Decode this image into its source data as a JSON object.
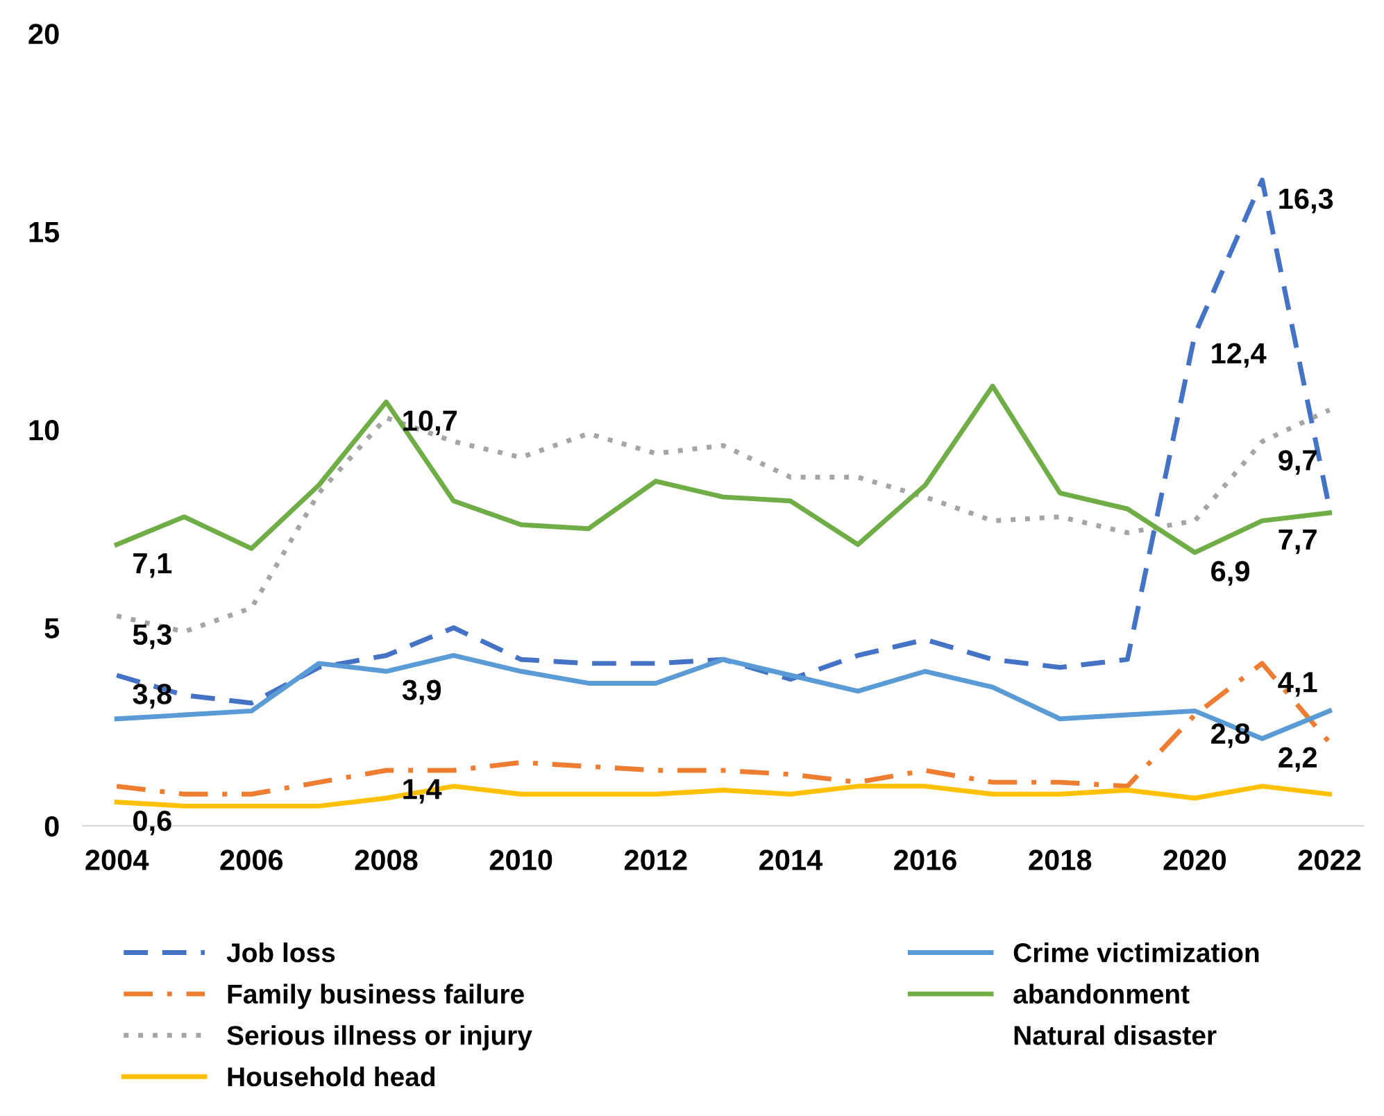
{
  "chart_data": {
    "type": "line",
    "x": [
      2004,
      2005,
      2006,
      2007,
      2008,
      2009,
      2010,
      2011,
      2012,
      2013,
      2014,
      2015,
      2016,
      2017,
      2018,
      2019,
      2020,
      2021,
      2022
    ],
    "xlim": [
      2003.5,
      2022.5
    ],
    "xticks": [
      2004,
      2006,
      2008,
      2010,
      2012,
      2014,
      2016,
      2018,
      2020,
      2022
    ],
    "ylim": [
      0,
      20
    ],
    "yticks": [
      0,
      5,
      10,
      15,
      20
    ],
    "grid": false,
    "legend": "bottom",
    "series": [
      {
        "name": "Job loss",
        "color": "#4472c4",
        "line_style": "dashed",
        "values": [
          3.8,
          3.3,
          3.1,
          4.0,
          4.3,
          5.0,
          4.2,
          4.1,
          4.1,
          4.2,
          3.7,
          4.3,
          4.7,
          4.2,
          4.0,
          4.2,
          12.4,
          16.3,
          8.0
        ],
        "value_labels": [
          "3,8",
          null,
          null,
          null,
          null,
          null,
          null,
          null,
          null,
          null,
          null,
          null,
          null,
          null,
          null,
          null,
          "12,4",
          "16,3",
          null
        ]
      },
      {
        "name": "Family business failure",
        "color": "#ed7d31",
        "line_style": "dashdot",
        "values": [
          1.0,
          0.8,
          0.8,
          1.1,
          1.4,
          1.4,
          1.6,
          1.5,
          1.4,
          1.4,
          1.3,
          1.1,
          1.4,
          1.1,
          1.1,
          1.0,
          2.8,
          4.1,
          2.1
        ],
        "value_labels": [
          null,
          null,
          null,
          null,
          "1,4",
          null,
          null,
          null,
          null,
          null,
          null,
          null,
          null,
          null,
          null,
          null,
          "2,8",
          "4,1",
          null
        ]
      },
      {
        "name": "Serious illness or injury",
        "color": "#a5a5a5",
        "line_style": "dotted",
        "values": [
          5.3,
          4.9,
          5.5,
          8.4,
          10.3,
          9.7,
          9.3,
          9.9,
          9.4,
          9.6,
          8.8,
          8.8,
          8.3,
          7.7,
          7.8,
          7.4,
          7.7,
          9.7,
          10.5
        ],
        "value_labels": [
          "5,3",
          null,
          null,
          null,
          null,
          null,
          null,
          null,
          null,
          null,
          null,
          null,
          null,
          null,
          null,
          null,
          null,
          "9,7",
          null
        ]
      },
      {
        "name": "Household head",
        "color": "#ffc000",
        "line_style": "solid",
        "values": [
          0.6,
          0.5,
          0.5,
          0.5,
          0.7,
          1.0,
          0.8,
          0.8,
          0.8,
          0.9,
          0.8,
          1.0,
          1.0,
          0.8,
          0.8,
          0.9,
          0.7,
          1.0,
          0.8
        ],
        "value_labels": [
          "0,6",
          null,
          null,
          null,
          null,
          null,
          null,
          null,
          null,
          null,
          null,
          null,
          null,
          null,
          null,
          null,
          null,
          null,
          null
        ]
      },
      {
        "name": "Crime victimization",
        "color": "#5b9bd5",
        "line_style": "solid",
        "values": [
          2.7,
          2.8,
          2.9,
          4.1,
          3.9,
          4.3,
          3.9,
          3.6,
          3.6,
          4.2,
          3.8,
          3.4,
          3.9,
          3.5,
          2.7,
          2.8,
          2.9,
          2.2,
          2.9
        ],
        "value_labels": [
          null,
          null,
          null,
          null,
          "3,9",
          null,
          null,
          null,
          null,
          null,
          null,
          null,
          null,
          null,
          null,
          null,
          null,
          "2,2",
          null
        ]
      },
      {
        "name": "abandonment",
        "color": "#70ad47",
        "line_style": "solid",
        "values": [
          7.1,
          7.8,
          7.0,
          8.6,
          10.7,
          8.2,
          7.6,
          7.5,
          8.7,
          8.3,
          8.2,
          7.1,
          8.6,
          11.1,
          8.4,
          8.0,
          6.9,
          7.7,
          7.9
        ],
        "value_labels": [
          "7,1",
          null,
          null,
          null,
          "10,7",
          null,
          null,
          null,
          null,
          null,
          null,
          null,
          null,
          null,
          null,
          null,
          "6,9",
          "7,7",
          null
        ]
      },
      {
        "name": "Natural disaster",
        "values": [
          null,
          null,
          null,
          null,
          null,
          null,
          null,
          null,
          null,
          null,
          null,
          null,
          null,
          null,
          null,
          null,
          null,
          null,
          null
        ]
      }
    ]
  }
}
